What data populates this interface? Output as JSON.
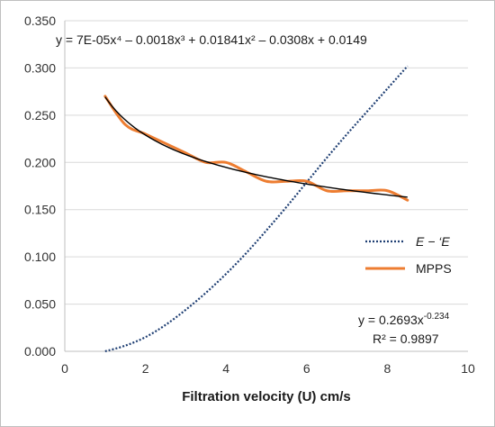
{
  "chart_data": {
    "type": "line",
    "xlabel": "Filtration velocity (U) cm/s",
    "ylabel": "",
    "xlim": [
      0,
      10
    ],
    "ylim": [
      0,
      0.35
    ],
    "x_ticks": [
      "0",
      "2",
      "4",
      "6",
      "8",
      "10"
    ],
    "y_ticks": [
      "0.000",
      "0.050",
      "0.100",
      "0.150",
      "0.200",
      "0.250",
      "0.300",
      "0.350"
    ],
    "grid": "horizontal",
    "legend_position": "right",
    "series": [
      {
        "name": "E − ‘E",
        "style": "dotted",
        "color": "#1f3f73",
        "x": [
          1.0,
          1.5,
          2.0,
          2.5,
          3.0,
          3.5,
          4.0,
          4.5,
          5.0,
          5.5,
          6.0,
          6.5,
          7.0,
          7.5,
          8.0,
          8.5
        ],
        "y": [
          0.0,
          0.006,
          0.015,
          0.028,
          0.044,
          0.062,
          0.082,
          0.104,
          0.128,
          0.153,
          0.179,
          0.205,
          0.23,
          0.254,
          0.278,
          0.302
        ]
      },
      {
        "name": "MPPS",
        "style": "solid",
        "color": "#ed7d31",
        "x": [
          1.0,
          1.5,
          2.0,
          2.5,
          3.0,
          3.5,
          4.0,
          4.5,
          5.0,
          5.5,
          6.0,
          6.5,
          7.0,
          7.5,
          8.0,
          8.5
        ],
        "y": [
          0.27,
          0.24,
          0.23,
          0.22,
          0.21,
          0.2,
          0.2,
          0.19,
          0.18,
          0.18,
          0.18,
          0.17,
          0.17,
          0.17,
          0.17,
          0.16
        ]
      }
    ],
    "trendline": {
      "type": "power",
      "color": "#000000",
      "coef": 0.2693,
      "exponent": -0.234,
      "x_range": [
        1.0,
        8.5
      ]
    },
    "annotations": {
      "polynomial_equation": "y = 7E-05x⁴ – 0.0018x³ + 0.01841x² – 0.0308x + 0.0149",
      "power_equation_base": "y = 0.2693x",
      "power_equation_exponent": "-0.234",
      "r_squared": "R² = 0.9897"
    }
  }
}
